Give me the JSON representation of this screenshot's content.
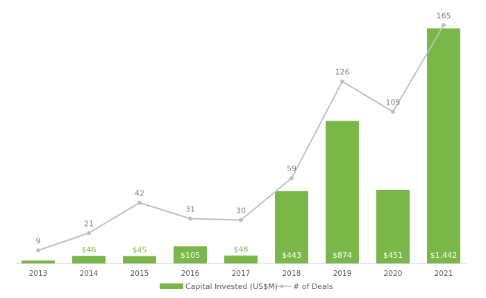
{
  "chart_data": {
    "type": "bar",
    "title": "",
    "xlabel": "",
    "ylabel": "",
    "categories": [
      "2013",
      "2014",
      "2015",
      "2016",
      "2017",
      "2018",
      "2019",
      "2020",
      "2021"
    ],
    "series": [
      {
        "name": "Capital Invested (US$M)",
        "type": "bar",
        "color": "#7ab648",
        "values": [
          18,
          46,
          45,
          105,
          48,
          443,
          874,
          451,
          1442
        ],
        "labels": [
          "",
          "$46",
          "$45",
          "$105",
          "$48",
          "$443",
          "$874",
          "$451",
          "$1,442"
        ]
      },
      {
        "name": "# of Deals",
        "type": "line",
        "color": "#bfbfbf",
        "values": [
          9,
          21,
          42,
          31,
          30,
          59,
          126,
          105,
          165
        ],
        "labels": [
          "9",
          "21",
          "42",
          "31",
          "30",
          "59",
          "126",
          "105",
          "165"
        ]
      }
    ],
    "legend_position": "bottom",
    "grid": false,
    "axes_visible": false
  },
  "legend": {
    "bar_label": "Capital Invested (US$M)",
    "line_label": "# of Deals"
  }
}
